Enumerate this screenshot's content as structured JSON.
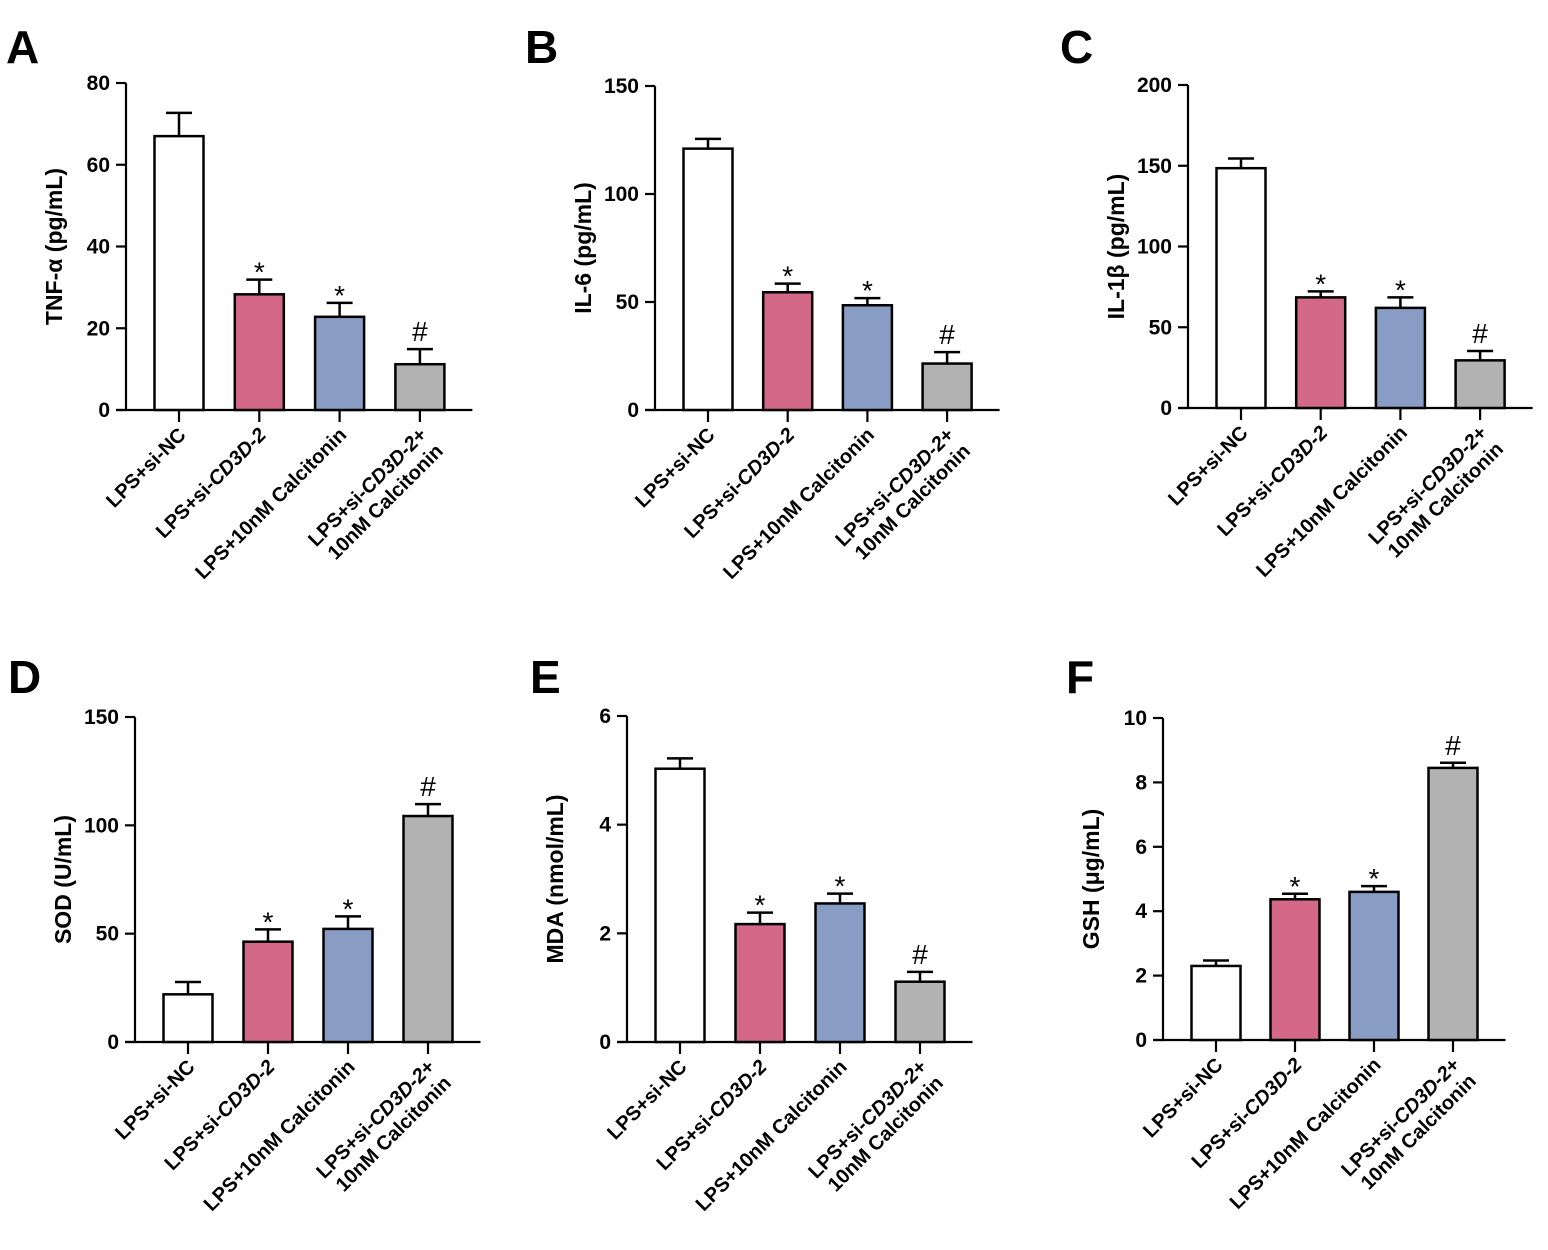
{
  "colors": {
    "LPS+si-NC": "#ffffff",
    "LPS+si-CD3D-2": "#d46888",
    "LPS+10nM Calcitonin": "#889cc4",
    "LPS+si-CD3D-2+10nM Calcitonin": "#b2b2b2"
  },
  "chart_data": [
    {
      "panel": "A",
      "type": "bar",
      "title": "",
      "xlabel": "",
      "ylabel": "TNF-α (pg/mL)",
      "ylim": [
        0,
        80
      ],
      "yticks": [
        0,
        20,
        40,
        60,
        80
      ],
      "categories": [
        "LPS+si-NC",
        "LPS+si-CD3D-2",
        "LPS+10nM Calcitonin",
        "LPS+si-CD3D-2+ 10nM Calcitonin"
      ],
      "category_lines": [
        [
          "LPS+si-NC"
        ],
        [
          "LPS+si-",
          "CD3D-2"
        ],
        [
          "LPS+10nM Calcitonin"
        ],
        [
          "LPS+si-",
          "CD3D-2+",
          "10nM Calcitonin"
        ]
      ],
      "values": [
        67,
        28.3,
        22.8,
        11.2
      ],
      "errors": [
        5.7,
        3.6,
        3.4,
        3.7
      ],
      "annotations": [
        "",
        "*",
        "*",
        "#"
      ]
    },
    {
      "panel": "B",
      "type": "bar",
      "title": "",
      "xlabel": "",
      "ylabel": "IL-6 (pg/mL)",
      "ylim": [
        0,
        150
      ],
      "yticks": [
        0,
        50,
        100,
        150
      ],
      "categories": [
        "LPS+si-NC",
        "LPS+si-CD3D-2",
        "LPS+10nM Calcitonin",
        "LPS+si-CD3D-2+ 10nM Calcitonin"
      ],
      "category_lines": [
        [
          "LPS+si-NC"
        ],
        [
          "LPS+si-",
          "CD3D-2"
        ],
        [
          "LPS+10nM Calcitonin"
        ],
        [
          "LPS+si-",
          "CD3D-2+",
          "10nM Calcitonin"
        ]
      ],
      "values": [
        121,
        54.5,
        48.5,
        21.5
      ],
      "errors": [
        4.5,
        4.0,
        3.3,
        5.3
      ],
      "annotations": [
        "",
        "*",
        "*",
        "#"
      ]
    },
    {
      "panel": "C",
      "type": "bar",
      "title": "",
      "xlabel": "",
      "ylabel": "IL-1β (pg/mL)",
      "ylim": [
        0,
        200
      ],
      "yticks": [
        0,
        50,
        100,
        150,
        200
      ],
      "categories": [
        "LPS+si-NC",
        "LPS+si-CD3D-2",
        "LPS+10nM Calcitonin",
        "LPS+si-CD3D-2+ 10nM Calcitonin"
      ],
      "category_lines": [
        [
          "LPS+si-NC"
        ],
        [
          "LPS+si-",
          "CD3D-2"
        ],
        [
          "LPS+10nM Calcitonin"
        ],
        [
          "LPS+si-",
          "CD3D-2+",
          "10nM Calcitonin"
        ]
      ],
      "values": [
        148.5,
        68.5,
        62,
        29.5
      ],
      "errors": [
        6,
        3.7,
        6.5,
        5.8
      ],
      "annotations": [
        "",
        "*",
        "*",
        "#"
      ]
    },
    {
      "panel": "D",
      "type": "bar",
      "title": "",
      "xlabel": "",
      "ylabel": "SOD (U/mL)",
      "ylim": [
        0,
        150
      ],
      "yticks": [
        0,
        50,
        100,
        150
      ],
      "categories": [
        "LPS+si-NC",
        "LPS+si-CD3D-2",
        "LPS+10nM Calcitonin",
        "LPS+si-CD3D-2+ 10nM Calcitonin"
      ],
      "category_lines": [
        [
          "LPS+si-NC"
        ],
        [
          "LPS+si-",
          "CD3D-2"
        ],
        [
          "LPS+10nM Calcitonin"
        ],
        [
          "LPS+si-",
          "CD3D-2+",
          "10nM Calcitonin"
        ]
      ],
      "values": [
        22,
        46.3,
        52.2,
        104.3
      ],
      "errors": [
        5.7,
        5.7,
        5.8,
        5.5
      ],
      "annotations": [
        "",
        "*",
        "*",
        "#"
      ]
    },
    {
      "panel": "E",
      "type": "bar",
      "title": "",
      "xlabel": "",
      "ylabel": "MDA (nmol/mL)",
      "ylim": [
        0,
        6
      ],
      "yticks": [
        0,
        2,
        4,
        6
      ],
      "categories": [
        "LPS+si-NC",
        "LPS+si-CD3D-2",
        "LPS+10nM Calcitonin",
        "LPS+si-CD3D-2+ 10nM Calcitonin"
      ],
      "category_lines": [
        [
          "LPS+si-NC"
        ],
        [
          "LPS+si-",
          "CD3D-2"
        ],
        [
          "LPS+10nM Calcitonin"
        ],
        [
          "LPS+si-",
          "CD3D-2+",
          "10nM Calcitonin"
        ]
      ],
      "values": [
        5.03,
        2.17,
        2.55,
        1.11
      ],
      "errors": [
        0.19,
        0.21,
        0.18,
        0.18
      ],
      "annotations": [
        "",
        "*",
        "*",
        "#"
      ]
    },
    {
      "panel": "F",
      "type": "bar",
      "title": "",
      "xlabel": "",
      "ylabel": "GSH (μg/mL)",
      "ylim": [
        0,
        10
      ],
      "yticks": [
        0,
        2,
        4,
        6,
        8,
        10
      ],
      "categories": [
        "LPS+si-NC",
        "LPS+si-CD3D-2",
        "LPS+10nM Calcitonin",
        "LPS+si-CD3D-2+ 10nM Calcitonin"
      ],
      "category_lines": [
        [
          "LPS+si-NC"
        ],
        [
          "LPS+si-",
          "CD3D-2"
        ],
        [
          "LPS+10nM Calcitonin"
        ],
        [
          "LPS+si-",
          "CD3D-2+",
          "10nM Calcitonin"
        ]
      ],
      "values": [
        2.3,
        4.37,
        4.6,
        8.45
      ],
      "errors": [
        0.17,
        0.17,
        0.18,
        0.16
      ],
      "annotations": [
        "",
        "*",
        "*",
        "#"
      ]
    }
  ]
}
